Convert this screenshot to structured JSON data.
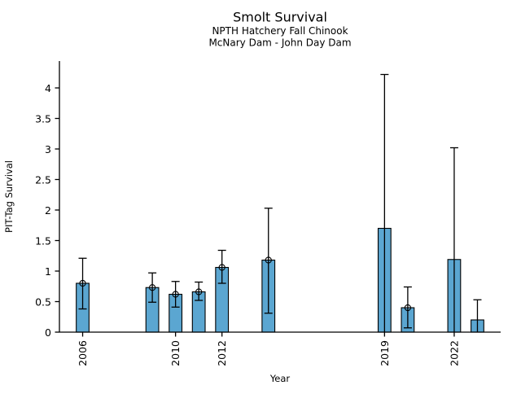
{
  "colors": {
    "bar_fill": "#5ba6d1",
    "bar_edge": "#000000",
    "error_bar": "#000000",
    "axis": "#000000",
    "text": "#000000",
    "background": "#ffffff"
  },
  "chart_data": {
    "type": "bar",
    "title": "Smolt Survival",
    "subtitle": [
      "NPTH Hatchery Fall Chinook",
      "McNary Dam - John Day Dam"
    ],
    "xlabel": "Year",
    "ylabel": "PIT-Tag Survival",
    "grid": false,
    "legend": null,
    "xlim": [
      2005.0,
      2024.0
    ],
    "ylim": [
      0,
      4.44
    ],
    "bar_width_years": 0.55,
    "x_ticks": [
      {
        "v": 2006,
        "label": "2006"
      },
      {
        "v": 2010,
        "label": "2010"
      },
      {
        "v": 2012,
        "label": "2012"
      },
      {
        "v": 2019,
        "label": "2019"
      },
      {
        "v": 2022,
        "label": "2022"
      }
    ],
    "y_ticks": [
      {
        "v": 0,
        "label": "0"
      },
      {
        "v": 0.5,
        "label": "0.5"
      },
      {
        "v": 1,
        "label": "1"
      },
      {
        "v": 1.5,
        "label": "1.5"
      },
      {
        "v": 2,
        "label": "2"
      },
      {
        "v": 2.5,
        "label": "2.5"
      },
      {
        "v": 3,
        "label": "3"
      },
      {
        "v": 3.5,
        "label": "3.5"
      },
      {
        "v": 4,
        "label": "4"
      }
    ],
    "points": [
      {
        "year": 2006,
        "value": 0.8,
        "err_lo": 0.38,
        "err_hi": 1.21,
        "marker": true
      },
      {
        "year": 2009,
        "value": 0.73,
        "err_lo": 0.49,
        "err_hi": 0.97,
        "marker": true
      },
      {
        "year": 2010,
        "value": 0.62,
        "err_lo": 0.41,
        "err_hi": 0.83,
        "marker": true
      },
      {
        "year": 2011,
        "value": 0.66,
        "err_lo": 0.52,
        "err_hi": 0.82,
        "marker": true
      },
      {
        "year": 2012,
        "value": 1.06,
        "err_lo": 0.8,
        "err_hi": 1.34,
        "marker": true
      },
      {
        "year": 2014,
        "value": 1.18,
        "err_lo": 0.31,
        "err_hi": 2.03,
        "marker": true
      },
      {
        "year": 2019,
        "value": 1.7,
        "err_lo": 0.0,
        "err_hi": 4.22,
        "marker": false
      },
      {
        "year": 2020,
        "value": 0.4,
        "err_lo": 0.07,
        "err_hi": 0.74,
        "marker": true
      },
      {
        "year": 2022,
        "value": 1.19,
        "err_lo": 0.0,
        "err_hi": 3.02,
        "marker": false
      },
      {
        "year": 2023,
        "value": 0.2,
        "err_lo": 0.0,
        "err_hi": 0.53,
        "marker": false
      }
    ]
  }
}
